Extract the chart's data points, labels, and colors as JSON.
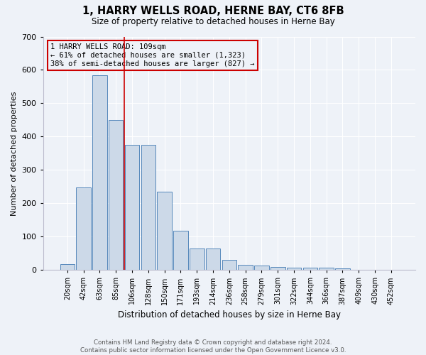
{
  "title": "1, HARRY WELLS ROAD, HERNE BAY, CT6 8FB",
  "subtitle": "Size of property relative to detached houses in Herne Bay",
  "xlabel": "Distribution of detached houses by size in Herne Bay",
  "ylabel": "Number of detached properties",
  "footer": "Contains HM Land Registry data © Crown copyright and database right 2024.\nContains public sector information licensed under the Open Government Licence v3.0.",
  "bin_labels": [
    "20sqm",
    "42sqm",
    "63sqm",
    "85sqm",
    "106sqm",
    "128sqm",
    "150sqm",
    "171sqm",
    "193sqm",
    "214sqm",
    "236sqm",
    "258sqm",
    "279sqm",
    "301sqm",
    "322sqm",
    "344sqm",
    "366sqm",
    "387sqm",
    "409sqm",
    "430sqm",
    "452sqm"
  ],
  "bar_heights": [
    18,
    248,
    583,
    450,
    375,
    375,
    235,
    118,
    65,
    65,
    30,
    15,
    14,
    10,
    7,
    7,
    7,
    5,
    0,
    0,
    0
  ],
  "property_bin_index": 4,
  "annotation_line1": "1 HARRY WELLS ROAD: 109sqm",
  "annotation_line2": "← 61% of detached houses are smaller (1,323)",
  "annotation_line3": "38% of semi-detached houses are larger (827) →",
  "bar_color": "#ccd9e8",
  "bar_edge_color": "#5588bb",
  "line_color": "#cc0000",
  "annotation_border_color": "#cc0000",
  "background_color": "#eef2f8",
  "ylim": [
    0,
    700
  ],
  "yticks": [
    0,
    100,
    200,
    300,
    400,
    500,
    600,
    700
  ]
}
